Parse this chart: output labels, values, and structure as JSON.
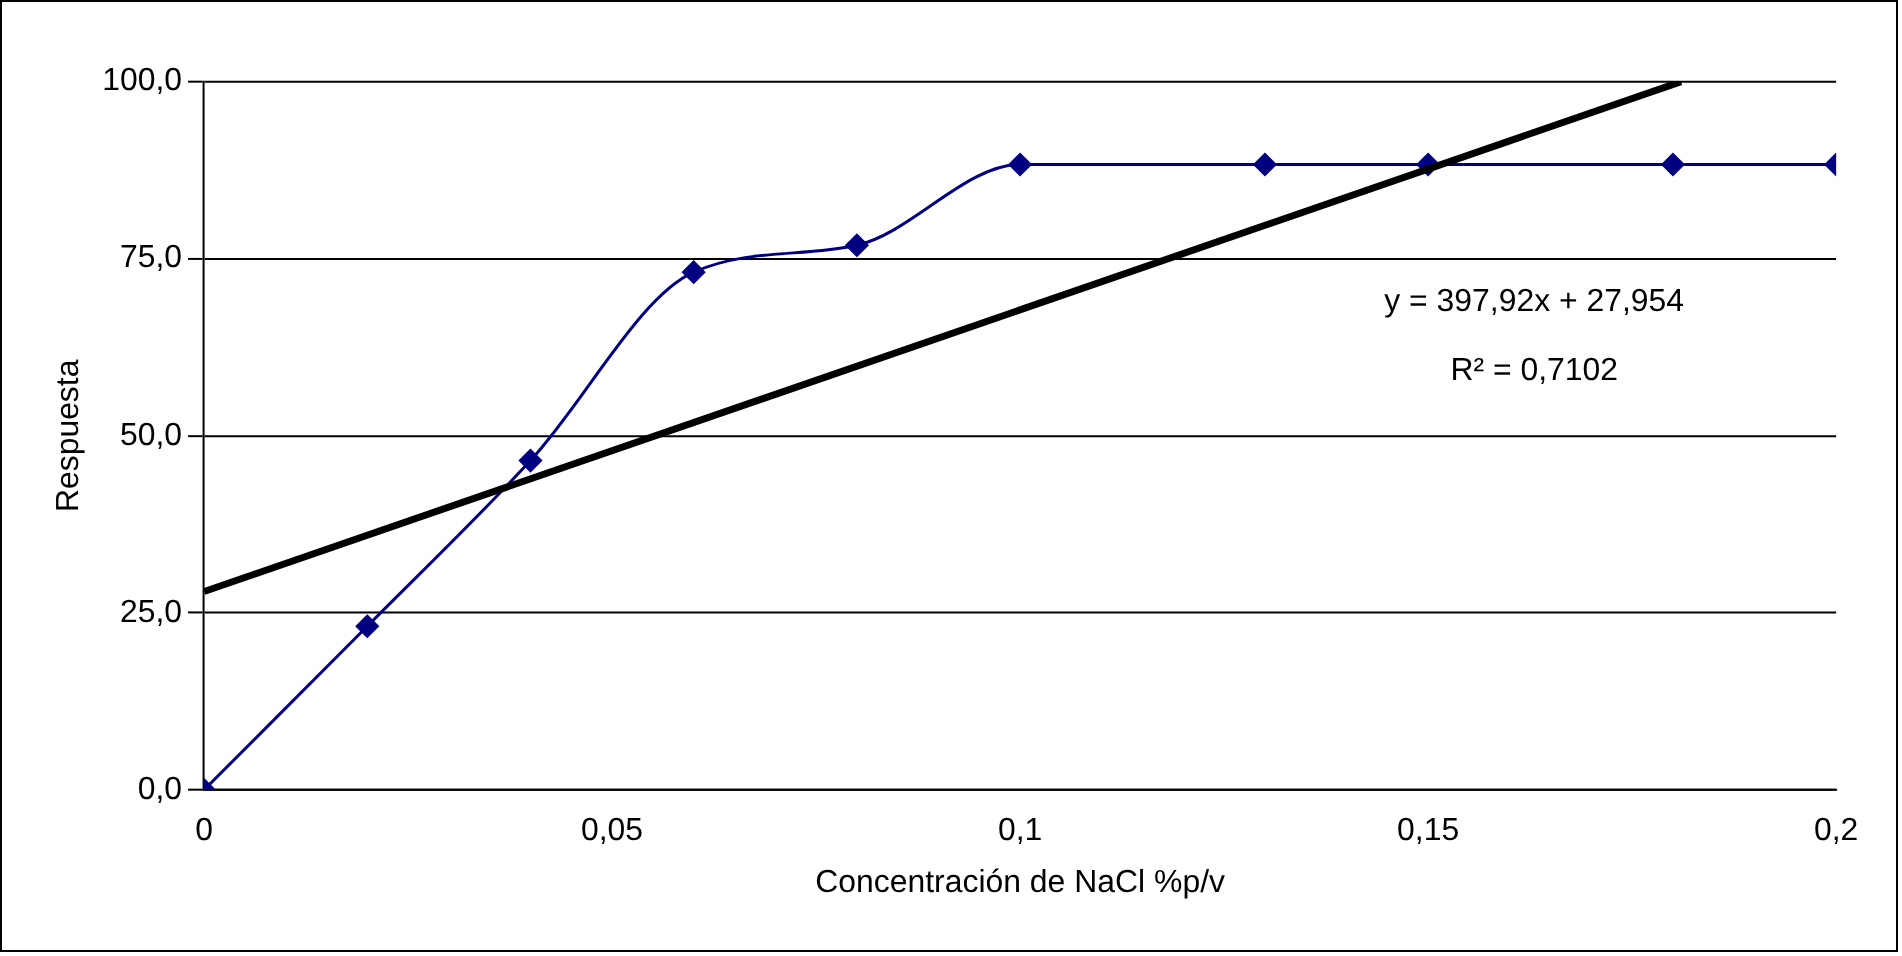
{
  "chart_data": {
    "type": "line",
    "xlabel": "Concentración de NaCl %p/v",
    "ylabel": "Respuesta",
    "xlim": [
      0,
      0.2
    ],
    "xticks": [
      0,
      {
        "value": 0.05,
        "label": "0,05"
      },
      {
        "value": 0.1,
        "label": "0,1"
      },
      {
        "value": 0.15,
        "label": "0,15"
      },
      {
        "value": 0.2,
        "label": "0,2"
      }
    ],
    "ylim": [
      0,
      100
    ],
    "yticks": [
      {
        "value": 0,
        "label": "0,0"
      },
      {
        "value": 25,
        "label": "25,0"
      },
      {
        "value": 50,
        "label": "50,0"
      },
      {
        "value": 75,
        "label": "75,0"
      },
      {
        "value": 100,
        "label": "100,0"
      }
    ],
    "grid": "y",
    "legend": false,
    "series": [
      {
        "color": "#000080",
        "marker": "diamond",
        "x": [
          0,
          0.02,
          0.04,
          0.06,
          0.08,
          0.1,
          0.13,
          0.15,
          0.18,
          0.2
        ],
        "values": [
          0,
          23.1,
          46.5,
          73.1,
          76.9,
          88.3,
          88.3,
          88.3,
          88.3,
          88.3
        ]
      },
      {
        "color": "#000000",
        "marker": "none",
        "x": [
          0,
          0.181
        ],
        "values": [
          28,
          100
        ]
      }
    ],
    "annotations": [
      "y = 397,92x + 27,954",
      "R² = 0,7102"
    ]
  }
}
